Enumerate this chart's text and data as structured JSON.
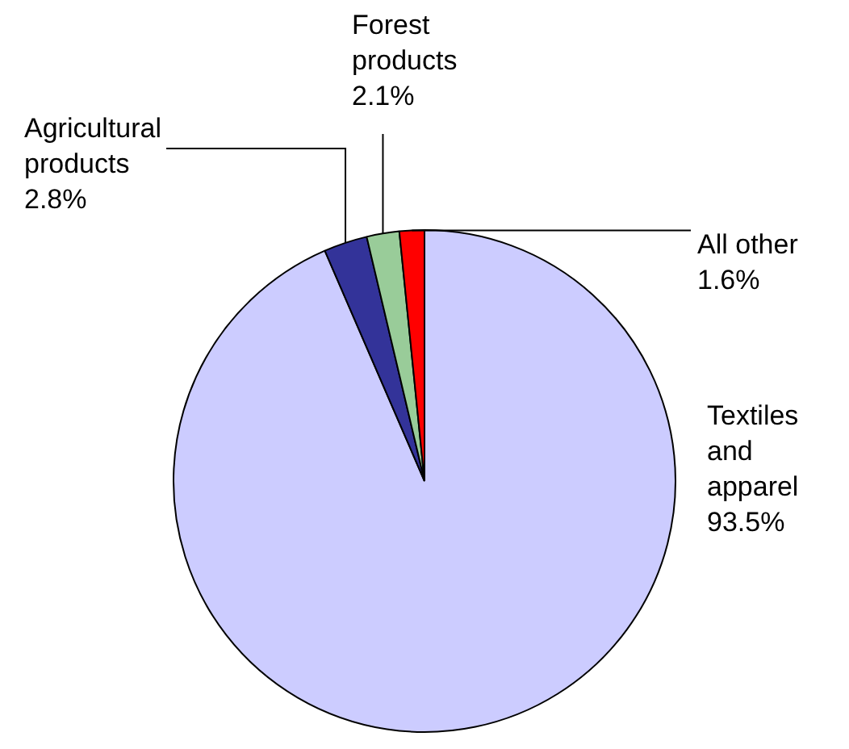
{
  "chart_data": {
    "type": "pie",
    "categories": [
      "Textiles and apparel",
      "Agricultural products",
      "Forest products",
      "All other"
    ],
    "values": [
      93.5,
      2.8,
      2.1,
      1.6
    ],
    "colors": [
      "#ccccff",
      "#333399",
      "#99cc99",
      "#ff0000"
    ],
    "value_labels": [
      "93.5%",
      "2.8%",
      "2.1%",
      "1.6%"
    ],
    "legend": false
  }
}
